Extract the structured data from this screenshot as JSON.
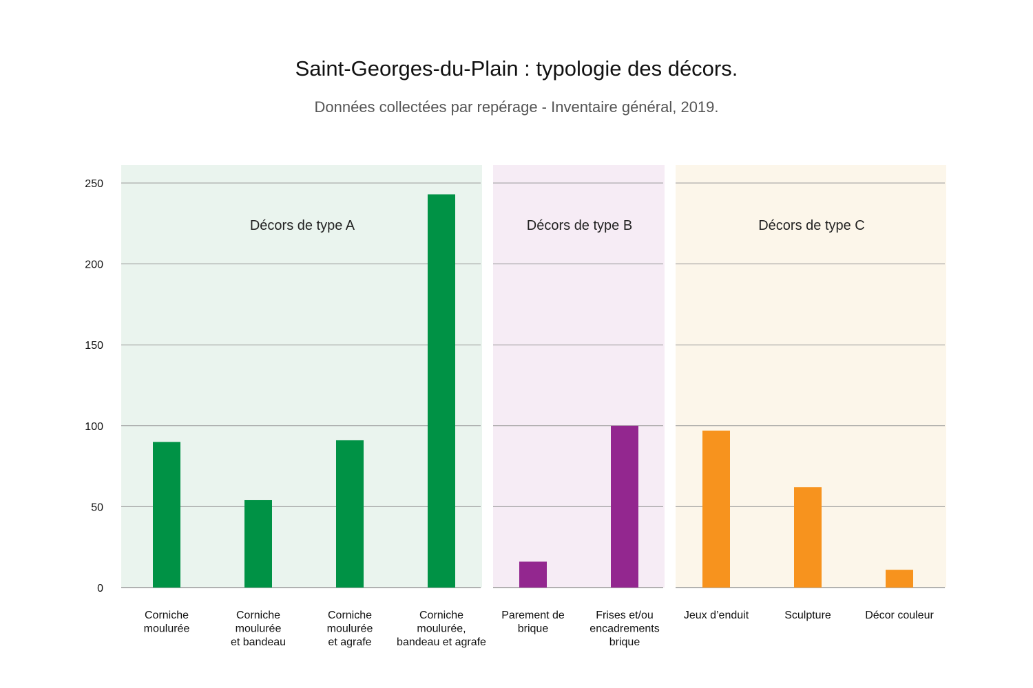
{
  "chart_data": {
    "type": "bar",
    "title": "Saint-Georges-du-Plain : typologie des décors.",
    "subtitle": "Données collectées par repérage - Inventaire général, 2019.",
    "ylim": [
      0,
      260
    ],
    "yticks": [
      0,
      50,
      100,
      150,
      200,
      250
    ],
    "grid": true,
    "groups": [
      {
        "name": "Décors de type A",
        "background": "#eaf4ee",
        "color": "#009245",
        "categories": [
          [
            "Corniche",
            "moulurée"
          ],
          [
            "Corniche",
            "moulurée",
            "et bandeau"
          ],
          [
            "Corniche",
            "moulurée",
            "et agrafe"
          ],
          [
            "Corniche",
            "moulurée,",
            "bandeau et agrafe"
          ]
        ],
        "values": [
          90,
          54,
          91,
          243
        ]
      },
      {
        "name": "Décors de type B",
        "background": "#f6ecf5",
        "color": "#93278f",
        "categories": [
          [
            "Parement de",
            "brique"
          ],
          [
            "Frises et/ou",
            "encadrements",
            "brique"
          ]
        ],
        "values": [
          16,
          100
        ]
      },
      {
        "name": "Décors de type C",
        "background": "#fcf6ea",
        "color": "#f7931e",
        "categories": [
          [
            "Jeux d’enduit"
          ],
          [
            "Sculpture"
          ],
          [
            "Décor couleur"
          ]
        ],
        "values": [
          97,
          62,
          11
        ]
      }
    ]
  }
}
